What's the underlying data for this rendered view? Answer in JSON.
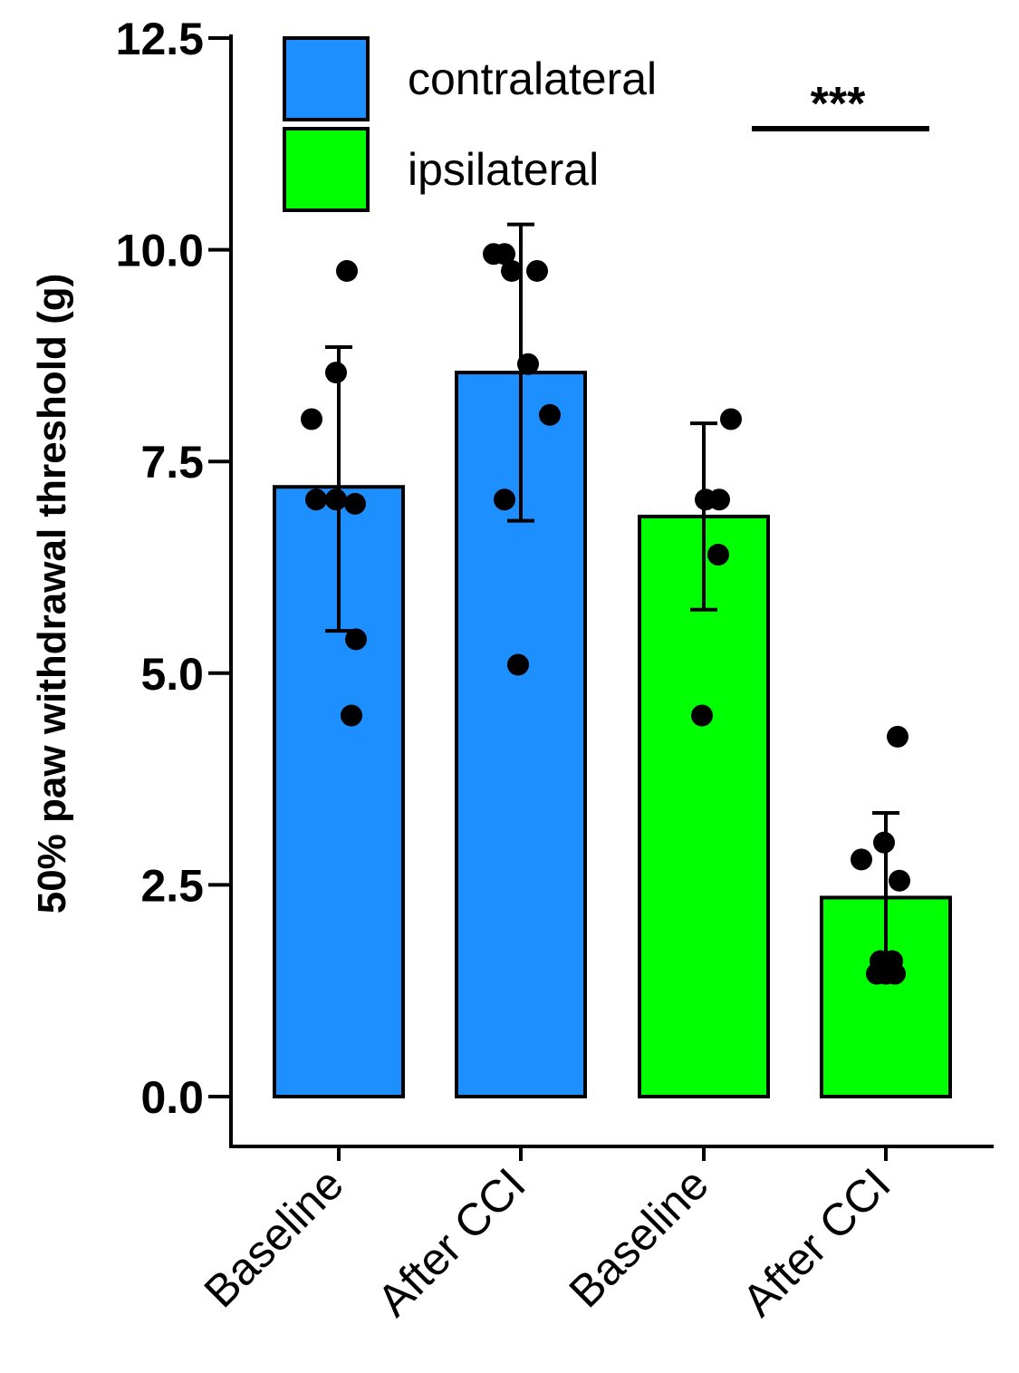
{
  "chart_data": {
    "type": "bar",
    "title": "",
    "xlabel": "",
    "ylabel": "50% paw withdrawal threshold (g)",
    "ylim": [
      0,
      12.5
    ],
    "yticks": [
      "0.0",
      "2.5",
      "5.0",
      "7.5",
      "10.0",
      "12.5"
    ],
    "ytick_values": [
      0,
      2.5,
      5,
      7.5,
      10,
      12.5
    ],
    "grid": false,
    "legend_position": "top-left",
    "categories": [
      "Baseline",
      "After CCI",
      "Baseline",
      "After CCI"
    ],
    "series": [
      {
        "name": "contralateral",
        "color": "#1E8FFF"
      },
      {
        "name": "ipsilateral",
        "color": "#00FF00"
      }
    ],
    "bars": [
      {
        "category": "Baseline",
        "series": "contralateral",
        "color": "#1E8FFF",
        "value": 7.2,
        "err_low": 5.5,
        "err_high": 8.85,
        "points": [
          [
            -0.3,
            8.0
          ],
          [
            0.09,
            9.75
          ],
          [
            -0.25,
            7.05
          ],
          [
            -0.03,
            7.05
          ],
          [
            0.18,
            7.0
          ],
          [
            -0.03,
            8.55
          ],
          [
            0.19,
            5.4
          ],
          [
            0.14,
            4.5
          ]
        ]
      },
      {
        "category": "After CCI",
        "series": "contralateral",
        "color": "#1E8FFF",
        "value": 8.55,
        "err_low": 6.8,
        "err_high": 10.3,
        "points": [
          [
            -0.3,
            9.95
          ],
          [
            -0.18,
            9.95
          ],
          [
            -0.1,
            9.75
          ],
          [
            0.18,
            9.75
          ],
          [
            0.08,
            8.65
          ],
          [
            0.32,
            8.05
          ],
          [
            -0.18,
            7.05
          ],
          [
            -0.03,
            5.1
          ]
        ]
      },
      {
        "category": "Baseline",
        "series": "ipsilateral",
        "color": "#00FF00",
        "value": 6.85,
        "err_low": 5.75,
        "err_high": 7.95,
        "points": [
          [
            0.3,
            8.0
          ],
          [
            0.02,
            7.05
          ],
          [
            0.17,
            7.05
          ],
          [
            0.16,
            6.4
          ],
          [
            -0.02,
            4.5
          ]
        ]
      },
      {
        "category": "After CCI",
        "series": "ipsilateral",
        "color": "#00FF00",
        "value": 2.35,
        "err_low": 1.55,
        "err_high": 3.35,
        "points": [
          [
            0.13,
            4.25
          ],
          [
            -0.27,
            2.8
          ],
          [
            -0.02,
            3.0
          ],
          [
            0.15,
            2.55
          ],
          [
            -0.06,
            1.6
          ],
          [
            0.07,
            1.6
          ],
          [
            -0.1,
            1.45
          ],
          [
            0.0,
            1.45
          ],
          [
            0.1,
            1.45
          ]
        ]
      }
    ],
    "significance": {
      "label": "***",
      "between": [
        "Baseline",
        "After CCI"
      ]
    }
  }
}
